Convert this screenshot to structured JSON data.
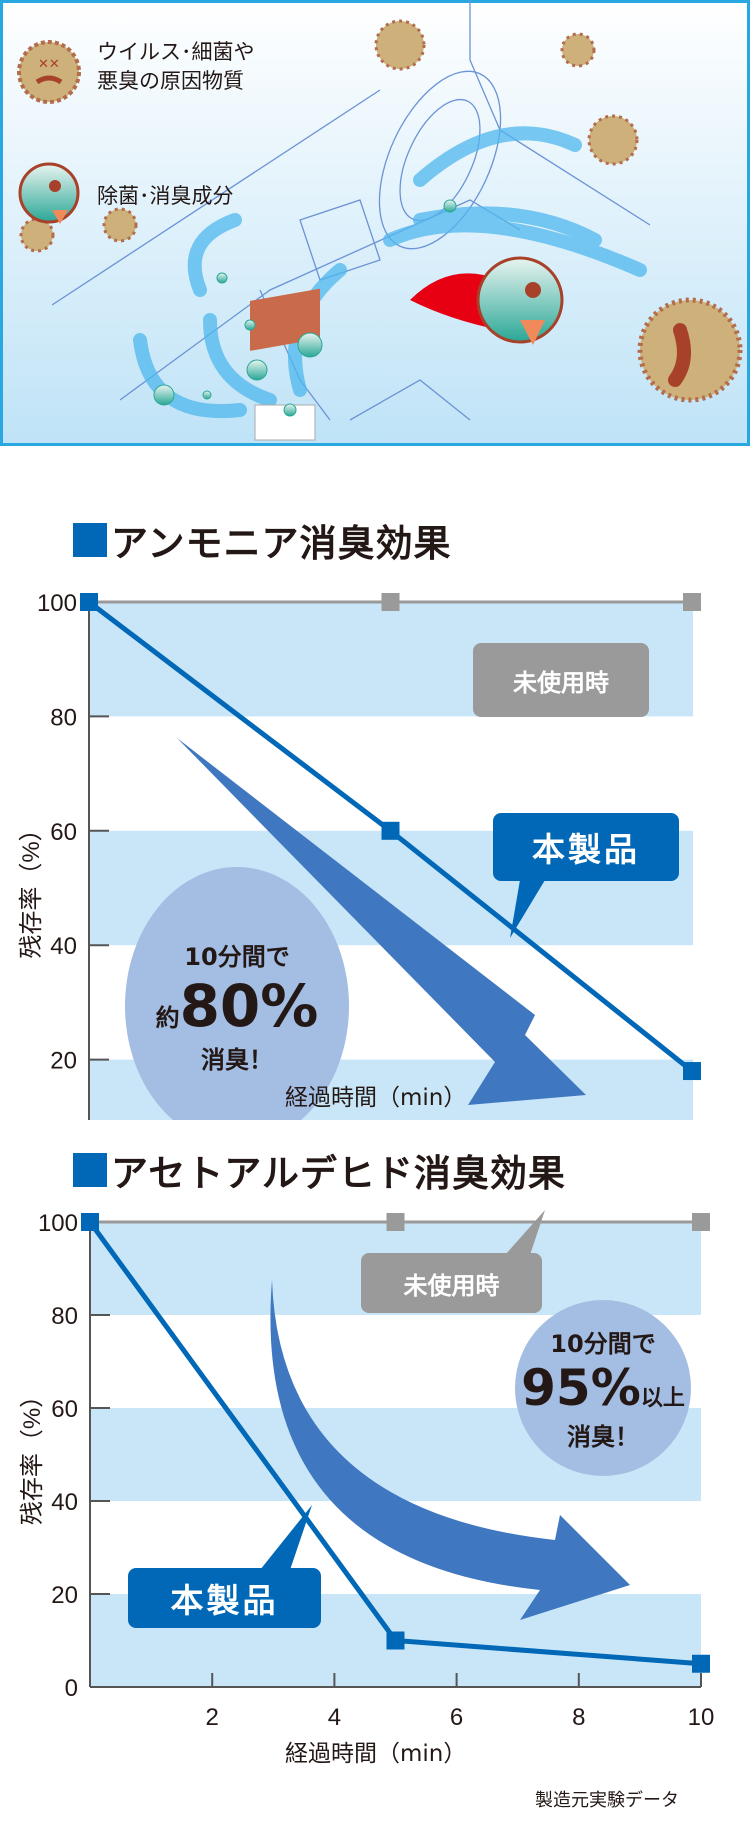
{
  "illustration": {
    "legend": [
      {
        "icon": "virus-germ-icon",
        "label_line1": "ウイルス･細菌や",
        "label_line2": "悪臭の原因物質"
      },
      {
        "icon": "deodorant-character-icon",
        "label_line1": "除菌･消臭成分"
      }
    ],
    "colors": {
      "border": "#29a7e1",
      "sky_top": "#ffffff",
      "sky_bottom": "#bfe3f7",
      "airflow": "#4fb8ee",
      "germ": "#cdb07a"
    }
  },
  "chart_data": [
    {
      "type": "line",
      "title": "アンモニア消臭効果",
      "xlabel": "経過時間（min）",
      "ylabel": "残存率（%）",
      "xlim": [
        0,
        10
      ],
      "ylim": [
        0,
        100
      ],
      "x_ticks": [
        "2",
        "4",
        "6",
        "8",
        "10"
      ],
      "y_ticks": [
        "0",
        "20",
        "40",
        "60",
        "80",
        "100"
      ],
      "x": [
        0,
        5,
        10
      ],
      "series": [
        {
          "name": "未使用時",
          "values": [
            100,
            100,
            100
          ],
          "color": "#9a9a9a"
        },
        {
          "name": "本製品",
          "values": [
            100,
            60,
            18
          ],
          "color": "#0068b7"
        }
      ],
      "annotation": {
        "line1": "10分間で",
        "prefix": "約",
        "big": "80%",
        "line3": "消臭！"
      },
      "bands": "alternating light blue horizontal stripes"
    },
    {
      "type": "line",
      "title": "アセトアルデヒド消臭効果",
      "xlabel": "経過時間（min）",
      "ylabel": "残存率（%）",
      "xlim": [
        0,
        10
      ],
      "ylim": [
        0,
        100
      ],
      "x_ticks": [
        "2",
        "4",
        "6",
        "8",
        "10"
      ],
      "y_ticks": [
        "0",
        "20",
        "40",
        "60",
        "80",
        "100"
      ],
      "x": [
        0,
        5,
        10
      ],
      "series": [
        {
          "name": "未使用時",
          "values": [
            100,
            100,
            100
          ],
          "color": "#9a9a9a"
        },
        {
          "name": "本製品",
          "values": [
            100,
            10,
            5
          ],
          "color": "#0068b7"
        }
      ],
      "annotation": {
        "line1": "10分間で",
        "big": "95%",
        "suffix": "以上",
        "line3": "消臭！"
      },
      "bands": "alternating light blue horizontal stripes"
    }
  ],
  "colors": {
    "title_square": "#0068b7",
    "band": "#c8e6f8",
    "arrow": "#3f78c0",
    "bubble": "#a3bde3",
    "axis": "#555555"
  },
  "footer": "製造元実験データ"
}
